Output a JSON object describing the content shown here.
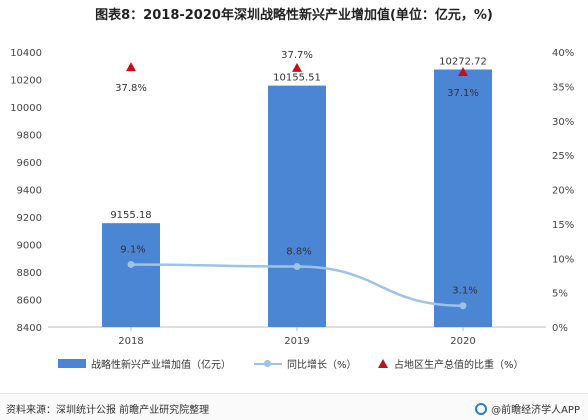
{
  "title": "图表8：2018-2020年深圳战略性新兴产业增加值(单位：亿元，%)",
  "chart_data": {
    "type": "bar",
    "categories": [
      "2018",
      "2019",
      "2020"
    ],
    "series": [
      {
        "name": "战略性新兴产业增加值（亿元）",
        "type": "bar",
        "axis": "left",
        "values": [
          9155.18,
          10155.51,
          10272.72
        ],
        "labels": [
          "9155.18",
          "10155.51",
          "10272.72"
        ],
        "color": "#4a86d4"
      },
      {
        "name": "同比增长（%）",
        "type": "line",
        "axis": "right",
        "values": [
          9.1,
          8.8,
          3.1
        ],
        "labels": [
          "9.1%",
          "8.8%",
          "3.1%"
        ],
        "color": "#9fc3e6"
      },
      {
        "name": "占地区生产总值的比重（%）",
        "type": "scatter",
        "marker": "triangle",
        "axis": "right",
        "values": [
          37.8,
          37.7,
          37.1
        ],
        "labels": [
          "37.8%",
          "37.7%",
          "37.1%"
        ],
        "color": "#c0121d"
      }
    ],
    "y_left": {
      "ticks": [
        "8400",
        "8600",
        "8800",
        "9000",
        "9200",
        "9400",
        "9600",
        "9800",
        "10000",
        "10200",
        "10400"
      ],
      "lim": [
        8400,
        10400
      ]
    },
    "y_right": {
      "ticks": [
        "0%",
        "5%",
        "10%",
        "15%",
        "20%",
        "25%",
        "30%",
        "35%",
        "40%"
      ],
      "lim": [
        0,
        40
      ]
    },
    "grid": false,
    "legend": "bottom"
  },
  "source": "资料来源：深圳统计公报 前瞻产业研究院整理",
  "brand": "@前瞻经济学人APP"
}
